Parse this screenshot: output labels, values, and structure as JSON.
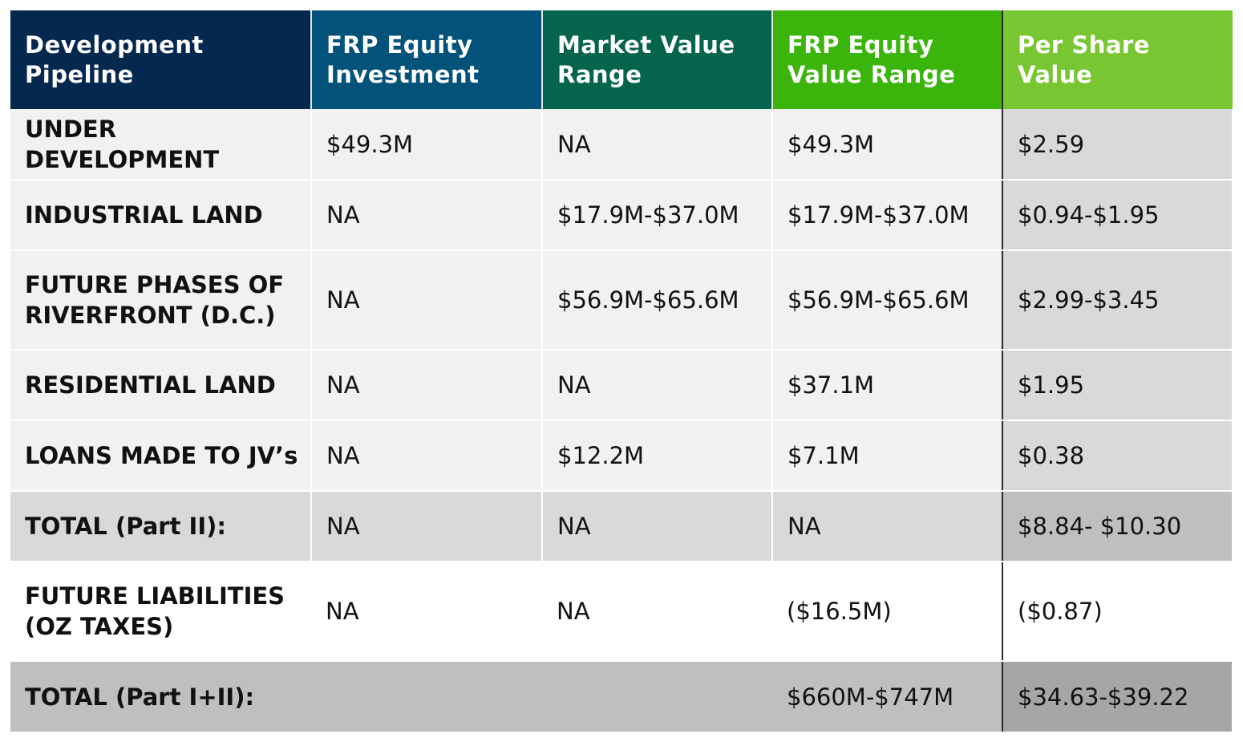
{
  "headers": [
    "Development Pipeline",
    "FRP Equity Investment",
    "Market Value Range",
    "FRP Equity Value Range",
    "Per Share Value"
  ],
  "rows": [
    {
      "label": "UNDER DEVELOPMENT",
      "investment": "$49.3M",
      "market": "NA",
      "equity": "$49.3M",
      "per_share": "$2.59"
    },
    {
      "label": "INDUSTRIAL LAND",
      "investment": "NA",
      "market": "$17.9M-$37.0M",
      "equity": "$17.9M-$37.0M",
      "per_share": "$0.94-$1.95"
    },
    {
      "label": "FUTURE PHASES OF RIVERFRONT (D.C.)",
      "investment": "NA",
      "market": "$56.9M-$65.6M",
      "equity": "$56.9M-$65.6M",
      "per_share": "$2.99-$3.45"
    },
    {
      "label": "RESIDENTIAL LAND",
      "investment": "NA",
      "market": "NA",
      "equity": "$37.1M",
      "per_share": "$1.95"
    },
    {
      "label": "LOANS MADE TO JV’s",
      "investment": "NA",
      "market": "$12.2M",
      "equity": "$7.1M",
      "per_share": "$0.38"
    }
  ],
  "total_part2": {
    "label": "TOTAL (Part II):",
    "investment": "NA",
    "market": "NA",
    "equity": "NA",
    "per_share": "$8.84- $10.30"
  },
  "liabilities": {
    "label": "FUTURE LIABILITIES (OZ TAXES)",
    "investment": "NA",
    "market": "NA",
    "equity": "($16.5M)",
    "per_share": "($0.87)"
  },
  "total_part12": {
    "label": "TOTAL (Part I+II):",
    "equity": "$660M-$747M",
    "per_share": "$34.63-$39.22"
  },
  "colors": {
    "header_1": "#05284f",
    "header_2": "#03527a",
    "header_3": "#05654c",
    "header_4": "#3bb50b",
    "header_5": "#78c732"
  }
}
